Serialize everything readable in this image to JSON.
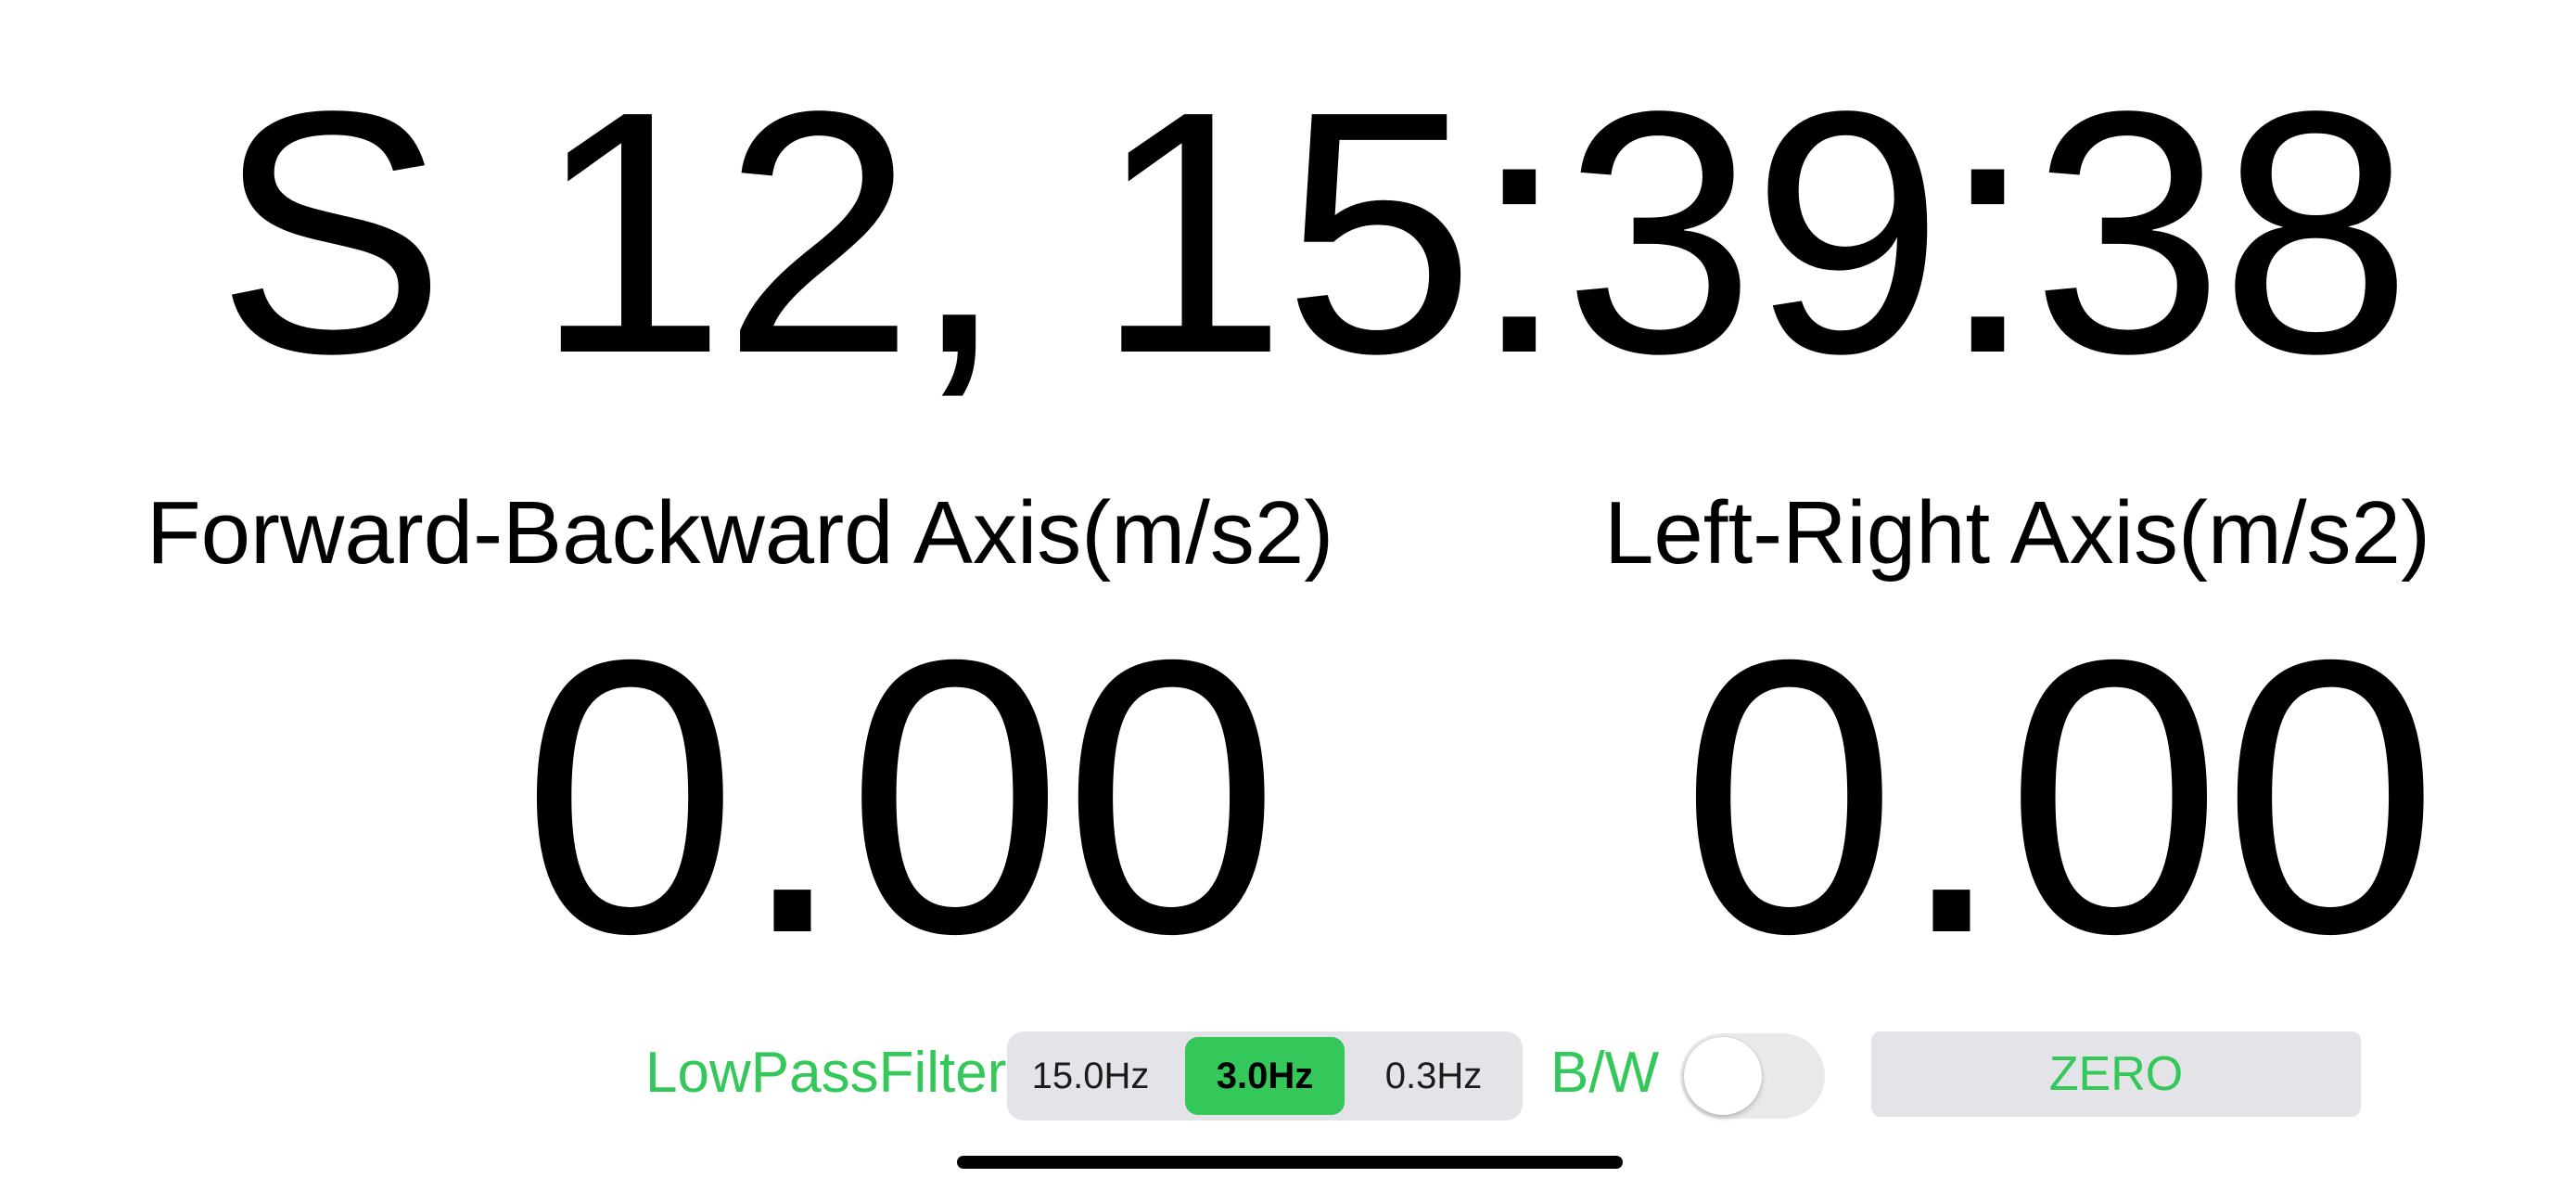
{
  "header": {
    "datetime": "S 12, 15:39:38"
  },
  "axes": {
    "forward_backward": {
      "label": "Forward-Backward Axis(m/s2)",
      "value": "0.00"
    },
    "left_right": {
      "label": "Left-Right Axis(m/s2)",
      "value": "0.00"
    }
  },
  "controls": {
    "lowpass_label": "LowPassFilter",
    "filter_options": [
      "15.0Hz",
      "3.0Hz",
      "0.3Hz"
    ],
    "filter_selected": "3.0Hz",
    "bw_label": "B/W",
    "bw_toggle_on": false,
    "zero_label": "ZERO"
  },
  "colors": {
    "accent": "#34c759",
    "background": "#ffffff",
    "text": "#000000",
    "control_fill": "#e4e4e8"
  }
}
